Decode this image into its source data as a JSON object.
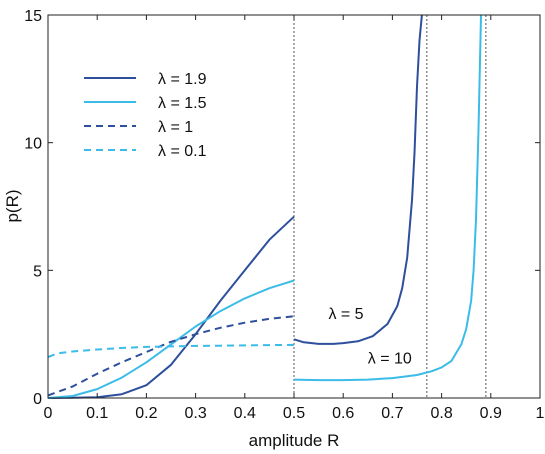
{
  "chart_data": {
    "type": "line",
    "title": "",
    "xlabel": "amplitude R",
    "ylabel": "p(R)",
    "xlim": [
      0,
      1
    ],
    "ylim": [
      0,
      15
    ],
    "grid": false,
    "legend_position": "top-left",
    "xticks": [
      0,
      0.1,
      0.2,
      0.3,
      0.4,
      0.5,
      0.6,
      0.7,
      0.8,
      0.9,
      1
    ],
    "xtick_labels": [
      "0",
      "0.1",
      "0.2",
      "0.3",
      "0.4",
      "0.5",
      "0.6",
      "0.7",
      "0.8",
      "0.9",
      "1"
    ],
    "yticks": [
      0,
      5,
      10,
      15
    ],
    "ytick_labels": [
      "0",
      "5",
      "10",
      "15"
    ],
    "vlines": [
      0.5,
      0.77,
      0.89
    ],
    "series": [
      {
        "name": "λ = 1.9",
        "color": "#2e4f9c",
        "dash": "solid",
        "x": [
          0,
          0.05,
          0.1,
          0.15,
          0.2,
          0.25,
          0.3,
          0.35,
          0.4,
          0.45,
          0.5
        ],
        "y": [
          0,
          0.01,
          0.03,
          0.15,
          0.5,
          1.3,
          2.5,
          3.8,
          5.0,
          6.2,
          7.1
        ]
      },
      {
        "name": "λ = 1.5",
        "color": "#3bbce8",
        "dash": "solid",
        "x": [
          0,
          0.05,
          0.1,
          0.15,
          0.2,
          0.25,
          0.3,
          0.35,
          0.4,
          0.45,
          0.5
        ],
        "y": [
          0,
          0.08,
          0.35,
          0.8,
          1.4,
          2.1,
          2.8,
          3.4,
          3.9,
          4.3,
          4.6
        ]
      },
      {
        "name": "λ = 1",
        "color": "#2e4f9c",
        "dash": "dashed",
        "x": [
          0,
          0.05,
          0.1,
          0.15,
          0.2,
          0.25,
          0.3,
          0.35,
          0.4,
          0.45,
          0.5
        ],
        "y": [
          0.1,
          0.45,
          0.95,
          1.4,
          1.8,
          2.2,
          2.5,
          2.75,
          2.95,
          3.1,
          3.2
        ]
      },
      {
        "name": "λ = 0.1",
        "color": "#3bbce8",
        "dash": "dashed",
        "x": [
          0,
          0.02,
          0.05,
          0.1,
          0.15,
          0.2,
          0.25,
          0.3,
          0.35,
          0.4,
          0.45,
          0.5
        ],
        "y": [
          1.6,
          1.75,
          1.82,
          1.9,
          1.96,
          2.0,
          2.02,
          2.04,
          2.05,
          2.06,
          2.07,
          2.08
        ]
      },
      {
        "name": "λ = 5",
        "color": "#2e4f9c",
        "dash": "solid",
        "x": [
          0.5,
          0.52,
          0.55,
          0.58,
          0.6,
          0.63,
          0.66,
          0.69,
          0.71,
          0.72,
          0.73,
          0.74,
          0.745,
          0.75,
          0.755,
          0.76
        ],
        "y": [
          2.3,
          2.18,
          2.12,
          2.12,
          2.15,
          2.22,
          2.42,
          2.9,
          3.6,
          4.3,
          5.5,
          7.8,
          9.6,
          12.2,
          14.0,
          15
        ]
      },
      {
        "name": "λ = 10",
        "color": "#3bbce8",
        "dash": "solid",
        "x": [
          0.5,
          0.55,
          0.6,
          0.65,
          0.7,
          0.75,
          0.78,
          0.8,
          0.82,
          0.84,
          0.85,
          0.86,
          0.865,
          0.87,
          0.875,
          0.88
        ],
        "y": [
          0.72,
          0.7,
          0.7,
          0.72,
          0.78,
          0.9,
          1.05,
          1.2,
          1.45,
          2.1,
          2.7,
          3.8,
          5.0,
          7.0,
          10.5,
          15
        ]
      }
    ],
    "annotations": [
      {
        "text": "λ = 5",
        "x": 0.57,
        "y": 3.1
      },
      {
        "text": "λ = 10",
        "x": 0.65,
        "y": 1.35
      }
    ]
  }
}
